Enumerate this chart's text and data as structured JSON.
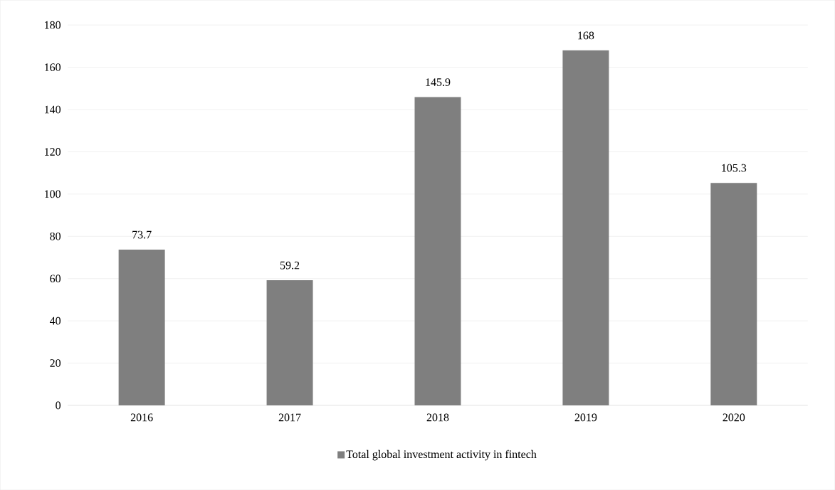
{
  "chart_data": {
    "type": "bar",
    "categories": [
      "2016",
      "2017",
      "2018",
      "2019",
      "2020"
    ],
    "series": [
      {
        "name": "Total global investment activity  in fintech",
        "color": "#7f7f7f",
        "values": [
          73.7,
          59.2,
          145.9,
          168,
          105.3
        ]
      }
    ],
    "ylim": [
      0,
      180
    ],
    "yticks": [
      0,
      20,
      40,
      60,
      80,
      100,
      120,
      140,
      160,
      180
    ],
    "grid": "y",
    "legend": "bottom",
    "data_labels": true
  }
}
